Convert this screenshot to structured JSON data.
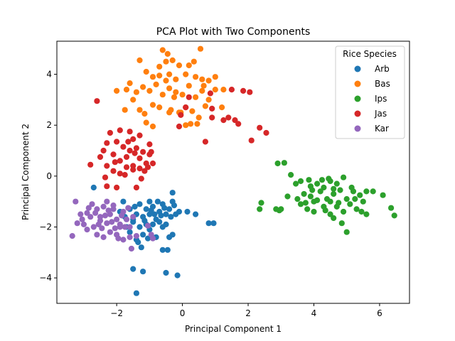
{
  "chart_data": {
    "type": "scatter",
    "title": "PCA Plot with Two Components",
    "xlabel": "Principal Component 1",
    "ylabel": "Principal Component 2",
    "xlim": [
      -3.82,
      6.91
    ],
    "ylim": [
      -5.0,
      5.3
    ],
    "xticks": [
      -2,
      0,
      2,
      4,
      6
    ],
    "yticks": [
      -4,
      -2,
      0,
      2,
      4
    ],
    "grid": false,
    "legend": {
      "title": "Rice Species",
      "placement": "top-right"
    },
    "series": [
      {
        "name": "Arb",
        "color": "#1f77b4",
        "points": [
          [
            -2.7,
            -0.45
          ],
          [
            -1.8,
            -1.0
          ],
          [
            -1.6,
            -1.3
          ],
          [
            -1.5,
            -1.8
          ],
          [
            -1.4,
            -1.5
          ],
          [
            -1.3,
            -1.1
          ],
          [
            -1.2,
            -1.6
          ],
          [
            -1.1,
            -1.3
          ],
          [
            -1.0,
            -1.5
          ],
          [
            -0.9,
            -1.2
          ],
          [
            -0.8,
            -1.7
          ],
          [
            -0.7,
            -1.4
          ],
          [
            -0.6,
            -1.1
          ],
          [
            -0.5,
            -1.5
          ],
          [
            -0.4,
            -1.3
          ],
          [
            -0.3,
            -1.0
          ],
          [
            -0.2,
            -1.5
          ],
          [
            -0.1,
            -1.4
          ],
          [
            -1.9,
            -1.4
          ],
          [
            -1.7,
            -2.0
          ],
          [
            -1.6,
            -2.2
          ],
          [
            -1.4,
            -2.5
          ],
          [
            -1.3,
            -2.0
          ],
          [
            -1.2,
            -2.3
          ],
          [
            -1.0,
            -2.1
          ],
          [
            -0.9,
            -1.9
          ],
          [
            -0.8,
            -2.4
          ],
          [
            -0.6,
            -2.0
          ],
          [
            -0.5,
            -1.9
          ],
          [
            -0.4,
            -2.4
          ],
          [
            -0.6,
            -2.9
          ],
          [
            -0.45,
            -2.9
          ],
          [
            -1.5,
            -3.65
          ],
          [
            -1.2,
            -3.75
          ],
          [
            -0.5,
            -3.8
          ],
          [
            -0.15,
            -3.9
          ],
          [
            -1.4,
            -4.6
          ],
          [
            -0.3,
            -0.65
          ],
          [
            -1.25,
            -2.8
          ],
          [
            -1.1,
            -1.9
          ],
          [
            -0.7,
            -1.8
          ],
          [
            -1.5,
            -1.7
          ],
          [
            -1.0,
            -1.0
          ],
          [
            -0.35,
            -1.6
          ],
          [
            -0.85,
            -1.5
          ],
          [
            -1.15,
            -1.75
          ],
          [
            -0.55,
            -1.25
          ],
          [
            -1.35,
            -2.6
          ],
          [
            0.15,
            -1.4
          ],
          [
            0.4,
            -1.5
          ],
          [
            0.8,
            -1.85
          ],
          [
            0.95,
            -1.85
          ],
          [
            -0.25,
            -1.15
          ],
          [
            -0.75,
            -1.0
          ],
          [
            -1.05,
            -2.45
          ],
          [
            -0.95,
            -1.35
          ],
          [
            -0.65,
            -1.55
          ],
          [
            -1.75,
            -1.6
          ],
          [
            -1.45,
            -1.2
          ],
          [
            -0.3,
            -2.3
          ]
        ]
      },
      {
        "name": "Bas",
        "color": "#ff7f0e",
        "points": [
          [
            -1.3,
            4.55
          ],
          [
            -0.6,
            4.95
          ],
          [
            -0.45,
            4.8
          ],
          [
            0.55,
            5.0
          ],
          [
            -0.7,
            4.3
          ],
          [
            -0.5,
            4.5
          ],
          [
            -0.3,
            4.55
          ],
          [
            -0.1,
            4.35
          ],
          [
            0.2,
            4.35
          ],
          [
            0.35,
            4.5
          ],
          [
            -1.1,
            4.1
          ],
          [
            -0.9,
            3.9
          ],
          [
            -0.7,
            3.95
          ],
          [
            -0.4,
            4.0
          ],
          [
            -0.2,
            3.8
          ],
          [
            0.1,
            4.0
          ],
          [
            0.4,
            3.9
          ],
          [
            0.6,
            3.8
          ],
          [
            0.8,
            3.75
          ],
          [
            1.0,
            3.9
          ],
          [
            -2.0,
            3.35
          ],
          [
            -1.7,
            3.4
          ],
          [
            -1.6,
            3.65
          ],
          [
            -1.4,
            3.3
          ],
          [
            -1.2,
            3.5
          ],
          [
            -1.0,
            3.35
          ],
          [
            -0.8,
            3.6
          ],
          [
            -0.6,
            3.2
          ],
          [
            -0.4,
            3.45
          ],
          [
            -0.2,
            3.3
          ],
          [
            0.0,
            3.2
          ],
          [
            0.2,
            3.55
          ],
          [
            0.4,
            3.1
          ],
          [
            0.6,
            3.35
          ],
          [
            0.8,
            3.0
          ],
          [
            1.0,
            3.4
          ],
          [
            1.25,
            3.4
          ],
          [
            -1.5,
            3.0
          ],
          [
            -1.3,
            2.6
          ],
          [
            -1.15,
            2.45
          ],
          [
            -0.9,
            2.8
          ],
          [
            -0.7,
            2.7
          ],
          [
            -0.35,
            2.6
          ],
          [
            -0.1,
            2.5
          ],
          [
            0.1,
            2.7
          ],
          [
            0.3,
            2.55
          ],
          [
            0.5,
            2.3
          ],
          [
            0.7,
            2.75
          ],
          [
            1.2,
            2.7
          ],
          [
            -1.75,
            2.6
          ],
          [
            -1.1,
            2.1
          ],
          [
            -0.9,
            1.95
          ],
          [
            -0.4,
            2.5
          ],
          [
            0.1,
            2.0
          ],
          [
            0.25,
            2.05
          ],
          [
            0.45,
            2.05
          ],
          [
            -0.05,
            2.5
          ],
          [
            0.65,
            3.55
          ],
          [
            -0.5,
            3.75
          ],
          [
            -0.25,
            3.1
          ]
        ]
      },
      {
        "name": "Ips",
        "color": "#2ca02c",
        "points": [
          [
            2.9,
            0.5
          ],
          [
            3.1,
            0.52
          ],
          [
            3.3,
            0.05
          ],
          [
            3.6,
            -0.2
          ],
          [
            3.9,
            -0.4
          ],
          [
            4.1,
            -0.3
          ],
          [
            4.3,
            -0.45
          ],
          [
            4.5,
            -0.2
          ],
          [
            4.7,
            -0.3
          ],
          [
            4.9,
            -0.05
          ],
          [
            3.2,
            -0.8
          ],
          [
            3.5,
            -0.9
          ],
          [
            3.7,
            -0.7
          ],
          [
            3.9,
            -0.8
          ],
          [
            4.0,
            -1.0
          ],
          [
            4.2,
            -0.6
          ],
          [
            4.4,
            -0.9
          ],
          [
            4.6,
            -0.7
          ],
          [
            4.8,
            -0.55
          ],
          [
            5.0,
            -0.9
          ],
          [
            5.2,
            -0.6
          ],
          [
            5.4,
            -0.75
          ],
          [
            5.6,
            -0.6
          ],
          [
            5.8,
            -0.6
          ],
          [
            6.1,
            -0.75
          ],
          [
            3.0,
            -1.3
          ],
          [
            3.6,
            -1.1
          ],
          [
            3.8,
            -1.3
          ],
          [
            4.0,
            -1.4
          ],
          [
            4.3,
            -1.2
          ],
          [
            4.5,
            -1.5
          ],
          [
            4.7,
            -1.2
          ],
          [
            4.9,
            -1.4
          ],
          [
            5.1,
            -1.1
          ],
          [
            5.3,
            -1.3
          ],
          [
            5.5,
            -1.0
          ],
          [
            5.6,
            -1.5
          ],
          [
            2.4,
            -1.05
          ],
          [
            2.35,
            -1.3
          ],
          [
            2.85,
            -1.3
          ],
          [
            2.95,
            -1.35
          ],
          [
            6.35,
            -1.25
          ],
          [
            6.45,
            -1.55
          ],
          [
            4.6,
            -1.65
          ],
          [
            4.85,
            -1.85
          ],
          [
            5.0,
            -2.2
          ],
          [
            4.1,
            -0.95
          ],
          [
            4.5,
            -1.0
          ],
          [
            3.75,
            -1.05
          ],
          [
            5.25,
            -0.9
          ],
          [
            4.25,
            -0.15
          ],
          [
            4.45,
            -0.1
          ],
          [
            3.45,
            -0.3
          ],
          [
            3.95,
            -0.55
          ],
          [
            4.75,
            -1.05
          ],
          [
            5.15,
            -0.45
          ],
          [
            4.35,
            -1.35
          ],
          [
            3.85,
            -0.15
          ],
          [
            5.45,
            -1.4
          ],
          [
            4.6,
            -0.5
          ]
        ]
      },
      {
        "name": "Jas",
        "color": "#d62728",
        "points": [
          [
            -2.6,
            2.95
          ],
          [
            -2.2,
            1.7
          ],
          [
            -1.9,
            1.8
          ],
          [
            -1.6,
            1.75
          ],
          [
            -1.3,
            1.6
          ],
          [
            -1.5,
            1.45
          ],
          [
            -2.0,
            1.35
          ],
          [
            -2.3,
            1.3
          ],
          [
            -1.8,
            1.15
          ],
          [
            -1.6,
            1.0
          ],
          [
            -1.4,
            1.1
          ],
          [
            -1.2,
            0.95
          ],
          [
            -1.0,
            1.25
          ],
          [
            -2.4,
            1.0
          ],
          [
            -2.1,
            0.85
          ],
          [
            -1.9,
            0.6
          ],
          [
            -1.7,
            0.75
          ],
          [
            -1.5,
            0.4
          ],
          [
            -1.3,
            0.7
          ],
          [
            -1.1,
            0.5
          ],
          [
            -2.5,
            0.75
          ],
          [
            -2.3,
            0.4
          ],
          [
            -2.1,
            0.2
          ],
          [
            -1.9,
            0.1
          ],
          [
            -1.7,
            0.35
          ],
          [
            -1.5,
            0.25
          ],
          [
            -1.3,
            0.3
          ],
          [
            -1.0,
            0.85
          ],
          [
            -0.9,
            0.5
          ],
          [
            -0.95,
            0.95
          ],
          [
            -2.8,
            0.45
          ],
          [
            -2.35,
            -0.05
          ],
          [
            -2.3,
            -0.4
          ],
          [
            -2.0,
            -0.45
          ],
          [
            -1.4,
            -0.45
          ],
          [
            -1.15,
            0.2
          ],
          [
            -0.1,
            1.95
          ],
          [
            -0.05,
            2.4
          ],
          [
            0.1,
            2.7
          ],
          [
            0.2,
            3.1
          ],
          [
            0.9,
            2.65
          ],
          [
            0.9,
            2.3
          ],
          [
            0.85,
            3.25
          ],
          [
            1.25,
            2.2
          ],
          [
            1.4,
            2.3
          ],
          [
            1.6,
            2.2
          ],
          [
            1.5,
            3.4
          ],
          [
            1.85,
            3.35
          ],
          [
            2.05,
            3.3
          ],
          [
            2.35,
            1.9
          ],
          [
            2.55,
            1.7
          ],
          [
            2.1,
            1.4
          ],
          [
            0.7,
            1.35
          ],
          [
            1.7,
            2.05
          ],
          [
            -1.65,
            1.35
          ],
          [
            -2.05,
            0.55
          ],
          [
            -1.45,
            0.9
          ],
          [
            -1.25,
            -0.1
          ],
          [
            -1.75,
            0.05
          ],
          [
            -1.05,
            0.35
          ]
        ]
      },
      {
        "name": "Kar",
        "color": "#9467bd",
        "points": [
          [
            -3.35,
            -2.35
          ],
          [
            -3.2,
            -1.85
          ],
          [
            -3.05,
            -1.7
          ],
          [
            -2.9,
            -1.45
          ],
          [
            -2.75,
            -1.1
          ],
          [
            -2.6,
            -1.3
          ],
          [
            -2.5,
            -1.6
          ],
          [
            -2.4,
            -1.2
          ],
          [
            -2.3,
            -1.85
          ],
          [
            -2.2,
            -1.5
          ],
          [
            -2.1,
            -1.3
          ],
          [
            -2.0,
            -1.7
          ],
          [
            -1.9,
            -1.9
          ],
          [
            -1.8,
            -1.4
          ],
          [
            -1.7,
            -1.7
          ],
          [
            -1.6,
            -2.0
          ],
          [
            -1.5,
            -1.6
          ],
          [
            -2.7,
            -2.0
          ],
          [
            -2.6,
            -2.3
          ],
          [
            -2.4,
            -2.4
          ],
          [
            -2.2,
            -2.2
          ],
          [
            -2.0,
            -2.3
          ],
          [
            -1.8,
            -2.5
          ],
          [
            -1.6,
            -2.4
          ],
          [
            -1.9,
            -2.0
          ],
          [
            -2.3,
            -1.0
          ],
          [
            -2.1,
            -1.15
          ],
          [
            -2.5,
            -1.75
          ],
          [
            -2.8,
            -1.6
          ],
          [
            -3.0,
            -1.9
          ],
          [
            -3.1,
            -1.5
          ],
          [
            -3.25,
            -1.0
          ],
          [
            -2.9,
            -2.1
          ],
          [
            -1.55,
            -2.85
          ],
          [
            -1.4,
            -2.35
          ],
          [
            -1.05,
            -1.95
          ],
          [
            -0.95,
            -2.3
          ],
          [
            -0.9,
            -2.45
          ],
          [
            -1.75,
            -2.0
          ],
          [
            -2.05,
            -2.05
          ],
          [
            -2.35,
            -1.55
          ],
          [
            -2.65,
            -1.45
          ],
          [
            -1.65,
            -1.25
          ],
          [
            -2.15,
            -1.8
          ],
          [
            -2.45,
            -2.05
          ],
          [
            -1.85,
            -1.55
          ],
          [
            -2.55,
            -1.9
          ],
          [
            -1.95,
            -2.45
          ],
          [
            -2.25,
            -1.35
          ],
          [
            -2.85,
            -1.25
          ]
        ]
      }
    ]
  }
}
